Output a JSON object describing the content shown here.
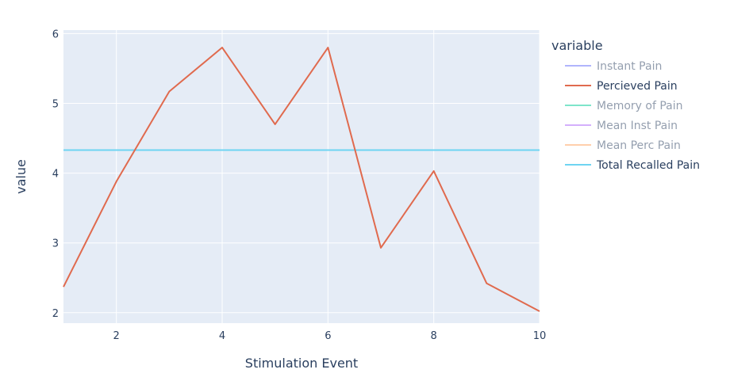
{
  "colors": {
    "plot_bg": "#e5ecf6",
    "grid": "#ffffff",
    "text": "#2a3f5f"
  },
  "chart_data": {
    "type": "line",
    "xlabel": "Stimulation Event",
    "ylabel": "value",
    "xlim": [
      1,
      10
    ],
    "ylim": [
      1.85,
      6.05
    ],
    "xticks": [
      "2",
      "4",
      "6",
      "8",
      "10"
    ],
    "yticks": [
      "2",
      "3",
      "4",
      "5",
      "6"
    ],
    "grid": true,
    "legend": {
      "title": "variable",
      "placement": "right"
    },
    "series": [
      {
        "name": "Instant Pain",
        "color": "#636efa",
        "visible": false,
        "x": [],
        "y": []
      },
      {
        "name": "Percieved Pain",
        "color": "#e06a4e",
        "visible": true,
        "x": [
          1,
          2,
          3,
          4,
          5,
          6,
          7,
          8,
          9,
          10
        ],
        "y": [
          2.37,
          3.88,
          5.17,
          5.8,
          4.7,
          5.8,
          2.93,
          4.03,
          2.42,
          2.02
        ]
      },
      {
        "name": "Memory of Pain",
        "color": "#00cc96",
        "visible": false,
        "x": [],
        "y": []
      },
      {
        "name": "Mean Inst Pain",
        "color": "#ab63fa",
        "visible": false,
        "x": [],
        "y": []
      },
      {
        "name": "Mean Perc Pain",
        "color": "#ffa15a",
        "visible": false,
        "x": [],
        "y": []
      },
      {
        "name": "Total Recalled Pain",
        "color": "#6ed4f2",
        "visible": true,
        "x": [
          1,
          10
        ],
        "y": [
          4.33,
          4.33
        ]
      }
    ]
  }
}
